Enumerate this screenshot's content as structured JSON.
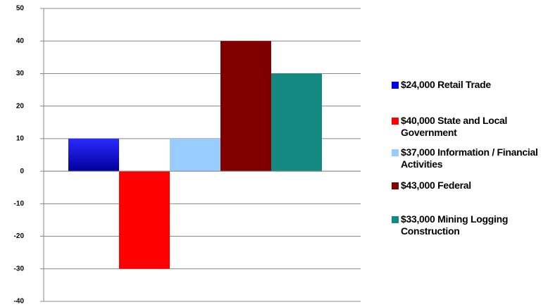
{
  "chart_data": {
    "type": "bar",
    "categories": [
      null
    ],
    "series": [
      {
        "name": "$24,000  Retail Trade",
        "color": "#0000e6",
        "values": [
          10
        ]
      },
      {
        "name": "$40,000  State and Local Government",
        "color": "#ff0000",
        "values": [
          -30
        ]
      },
      {
        "name": "$37,000  Information / Financial Activities",
        "color": "#99ccff",
        "values": [
          10
        ]
      },
      {
        "name": "$43,000  Federal",
        "color": "#800000",
        "values": [
          40
        ]
      },
      {
        "name": "$33,000  Mining Logging Construction",
        "color": "#128a82",
        "values": [
          30
        ]
      }
    ],
    "ylim": [
      -40,
      50
    ],
    "yticks": [
      50,
      40,
      30,
      20,
      10,
      0,
      -10,
      -20,
      -30,
      -40
    ],
    "grid": true
  }
}
